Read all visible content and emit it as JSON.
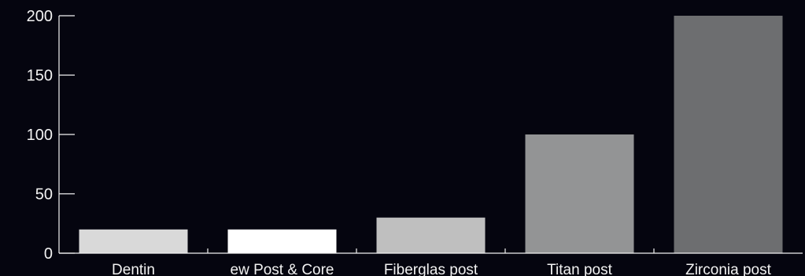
{
  "background": "#05050f",
  "axis_color": "#f2f2f2",
  "chart_data": {
    "type": "bar",
    "title": "",
    "xlabel": "",
    "ylabel": "",
    "categories": [
      "Dentin",
      "ew Post & Core",
      "Fiberglas post",
      "Titan post",
      "Zirconia post"
    ],
    "values": [
      20,
      20,
      30,
      100,
      200
    ],
    "bar_colors": [
      "#d9d9d9",
      "#ffffff",
      "#bfbfbf",
      "#939495",
      "#6d6e70"
    ],
    "ylim": [
      0,
      200
    ],
    "yticks": [
      "0",
      "50",
      "100",
      "150",
      "200"
    ],
    "grid": false,
    "legend": "none"
  }
}
